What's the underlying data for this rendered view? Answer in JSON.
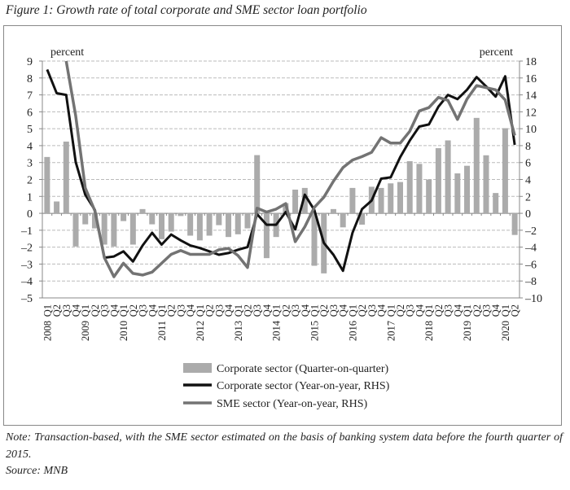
{
  "title": "Figure 1: Growth rate of total corporate and SME sector loan portfolio",
  "note": "Note: Transaction-based, with the SME sector estimated on the basis of banking system data before the fourth quarter of 2015.",
  "source": "Source: MNB",
  "chart_data": {
    "type": "bar+line",
    "left_axis": {
      "label": "percent",
      "range": [
        -5,
        9
      ],
      "ticks": [
        "9",
        "8",
        "7",
        "6",
        "5",
        "4",
        "3",
        "2",
        "1",
        "0",
        "-1",
        "-2",
        "-3",
        "-4",
        "-5"
      ]
    },
    "right_axis": {
      "label": "percent",
      "range": [
        -10,
        18
      ],
      "ticks": [
        "18",
        "16",
        "14",
        "12",
        "10",
        "8",
        "6",
        "4",
        "2",
        "0",
        "-2",
        "-4",
        "-6",
        "-8",
        "-10"
      ]
    },
    "grid": true,
    "legend_position": "bottom",
    "years": [
      "2008",
      "2009",
      "2010",
      "2011",
      "2012",
      "2013",
      "2014",
      "2015",
      "2016",
      "2017",
      "2018",
      "2019",
      "2020"
    ],
    "quarters": [
      "Q1",
      "Q2",
      "Q3",
      "Q4"
    ],
    "series": [
      {
        "name": "Corporate sector (Quarter-on-quarter)",
        "type": "bar",
        "axis": "left",
        "color": "#ababab",
        "values": [
          3.33,
          0.7,
          4.24,
          -1.96,
          -0.65,
          -0.89,
          -1.85,
          -1.96,
          -0.46,
          -1.85,
          0.25,
          -0.65,
          -1.53,
          -1.08,
          -0.16,
          -1.32,
          -1.6,
          -1.32,
          -0.7,
          -1.4,
          -1.24,
          -0.89,
          3.44,
          -2.65,
          -1.4,
          0.6,
          1.4,
          1.5,
          -3.1,
          -3.55,
          0.25,
          -0.83,
          1.5,
          -0.67,
          1.57,
          1.5,
          1.77,
          1.85,
          3.08,
          2.92,
          2.0,
          3.85,
          4.31,
          2.36,
          2.81,
          5.64,
          3.43,
          1.2,
          5.03,
          -1.28
        ]
      },
      {
        "name": "Corporate sector (Year-on-year, RHS)",
        "type": "line",
        "axis": "right",
        "color": "#111111",
        "values": [
          17.0,
          14.2,
          14.0,
          6.05,
          2.2,
          0.4,
          -5.25,
          -5.1,
          -4.5,
          -5.7,
          -3.8,
          -2.3,
          -3.7,
          -2.5,
          -3.2,
          -3.8,
          -4.1,
          -4.5,
          -4.9,
          -4.7,
          -4.3,
          -4.0,
          -0.1,
          -1.35,
          -1.35,
          0.15,
          -1.9,
          2.2,
          0.4,
          -3.5,
          -4.9,
          -6.8,
          -2.3,
          0.5,
          1.5,
          4.1,
          4.25,
          6.65,
          8.6,
          10.25,
          10.5,
          12.6,
          14.0,
          13.5,
          14.6,
          16.1,
          15.0,
          13.8,
          16.2,
          8.1
        ]
      },
      {
        "name": "SME sector (Year-on-year, RHS)",
        "type": "line",
        "axis": "right",
        "color": "#737373",
        "values": [
          null,
          null,
          18.0,
          11.5,
          3.0,
          0.3,
          -5.25,
          -7.5,
          -5.9,
          -7.1,
          -7.3,
          -6.95,
          -5.9,
          -4.85,
          -4.4,
          -4.85,
          -4.85,
          -4.85,
          -4.3,
          -4.15,
          -5.0,
          -6.4,
          0.6,
          0.15,
          0.5,
          1.15,
          -3.35,
          -1.6,
          0.7,
          1.9,
          3.8,
          5.4,
          6.3,
          6.7,
          7.2,
          8.95,
          8.3,
          8.3,
          9.7,
          12.1,
          12.5,
          13.7,
          13.35,
          11.1,
          13.5,
          15.1,
          14.85,
          14.6,
          13.4,
          9.2
        ]
      }
    ]
  }
}
